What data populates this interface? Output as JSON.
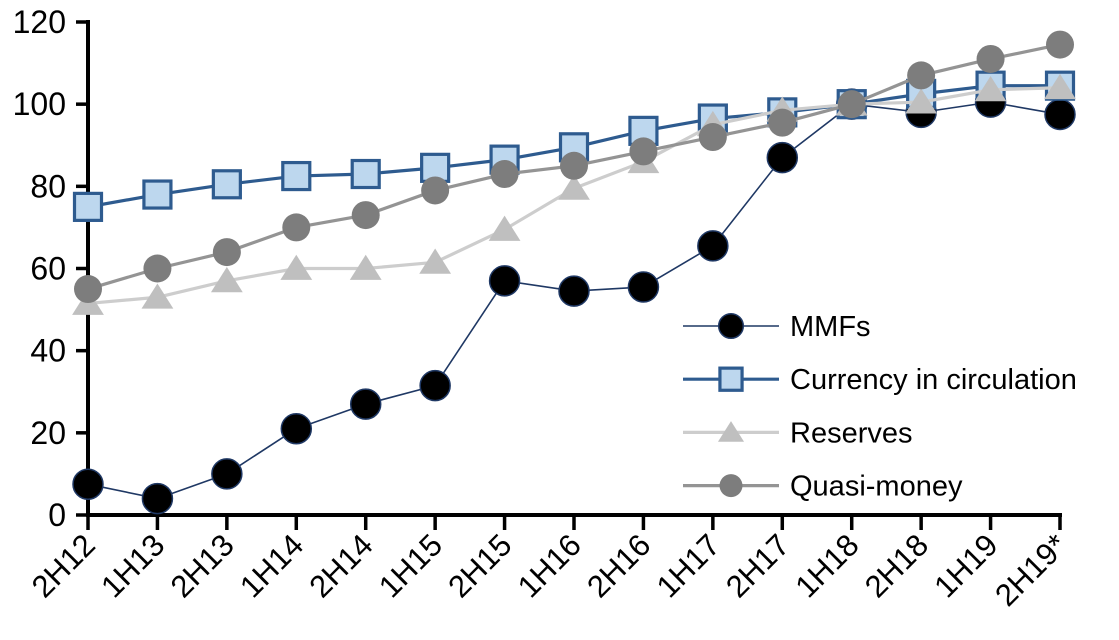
{
  "chart_data": {
    "type": "line",
    "title": "",
    "xlabel": "",
    "ylabel": "",
    "grid": false,
    "ylim": [
      0,
      120
    ],
    "yticks": [
      0,
      20,
      40,
      60,
      80,
      100,
      120
    ],
    "legend_position": "inside-right",
    "axis_color": "#000000",
    "categories": [
      "2H12",
      "1H13",
      "2H13",
      "1H14",
      "2H14",
      "1H15",
      "2H15",
      "1H16",
      "2H16",
      "1H17",
      "2H17",
      "1H18",
      "2H18",
      "1H19",
      "2H19*"
    ],
    "series": [
      {
        "name": "MMFs",
        "marker": "circle",
        "marker_fill": "#000000",
        "marker_stroke": "#1F3864",
        "marker_stroke_width": 1.5,
        "marker_size": 30,
        "line_color": "#1F3864",
        "line_width": 1.6,
        "values": [
          7.5,
          4,
          10,
          21,
          27,
          31.5,
          57,
          54.5,
          55.5,
          65.5,
          87,
          100,
          98,
          100.5,
          97.5
        ]
      },
      {
        "name": "Currency in circulation",
        "marker": "square",
        "marker_fill": "#BDD7EE",
        "marker_stroke": "#2E5B8F",
        "marker_stroke_width": 3.2,
        "marker_size": 27,
        "line_color": "#2E5B8F",
        "line_width": 3.2,
        "values": [
          75,
          78,
          80.5,
          82.5,
          83,
          84.5,
          86.5,
          89.5,
          93.5,
          96.5,
          98,
          100,
          102.5,
          104.5,
          104.5
        ]
      },
      {
        "name": "Reserves",
        "marker": "triangle",
        "marker_fill": "#BFBFBF",
        "marker_stroke": "none",
        "marker_stroke_width": 0,
        "marker_size": 30,
        "line_color": "#CDCDCD",
        "line_width": 3.2,
        "values": [
          51.5,
          53,
          57,
          60,
          60,
          61.5,
          69.5,
          79.5,
          86,
          95,
          98.5,
          100,
          100.5,
          103.5,
          104
        ]
      },
      {
        "name": "Quasi-money",
        "marker": "circle",
        "marker_fill": "#7D7D7D",
        "marker_stroke": "none",
        "marker_stroke_width": 0,
        "marker_size": 28,
        "line_color": "#949494",
        "line_width": 3.2,
        "values": [
          55,
          60,
          64,
          70,
          73,
          79,
          83,
          85,
          88.5,
          92,
          95.5,
          100,
          107,
          111,
          114.5
        ]
      }
    ]
  }
}
